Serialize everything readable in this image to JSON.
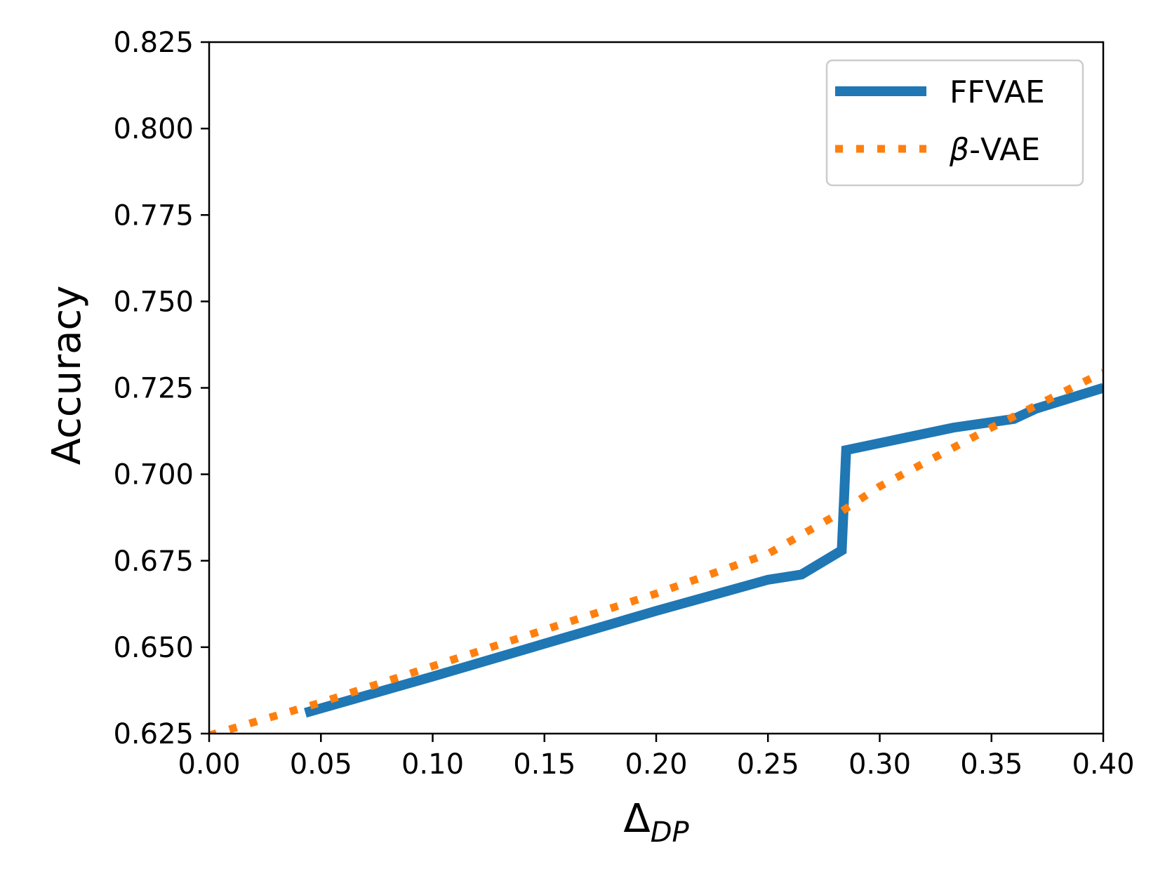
{
  "chart_data": {
    "type": "line",
    "title": "",
    "xlabel": "Δ",
    "xlabel_subscript": "DP",
    "ylabel": "Accuracy",
    "xlim": [
      0.0,
      0.4
    ],
    "ylim": [
      0.625,
      0.825
    ],
    "x_ticks": [
      {
        "value": 0.0,
        "label": "0.00"
      },
      {
        "value": 0.05,
        "label": "0.05"
      },
      {
        "value": 0.1,
        "label": "0.10"
      },
      {
        "value": 0.15,
        "label": "0.15"
      },
      {
        "value": 0.2,
        "label": "0.20"
      },
      {
        "value": 0.25,
        "label": "0.25"
      },
      {
        "value": 0.3,
        "label": "0.30"
      },
      {
        "value": 0.35,
        "label": "0.35"
      },
      {
        "value": 0.4,
        "label": "0.40"
      }
    ],
    "y_ticks": [
      {
        "value": 0.625,
        "label": "0.625"
      },
      {
        "value": 0.65,
        "label": "0.650"
      },
      {
        "value": 0.675,
        "label": "0.675"
      },
      {
        "value": 0.7,
        "label": "0.700"
      },
      {
        "value": 0.725,
        "label": "0.725"
      },
      {
        "value": 0.75,
        "label": "0.750"
      },
      {
        "value": 0.775,
        "label": "0.775"
      },
      {
        "value": 0.8,
        "label": "0.800"
      },
      {
        "value": 0.825,
        "label": "0.825"
      }
    ],
    "grid": false,
    "legend_position": "top-right",
    "series": [
      {
        "name": "FFVAE",
        "name_prefix_italic": "",
        "name_suffix": "FFVAE",
        "style": "solid",
        "color": "#1f77b4",
        "x": [
          0.043,
          0.1,
          0.15,
          0.2,
          0.25,
          0.265,
          0.283,
          0.285,
          0.333,
          0.36,
          0.37,
          0.4
        ],
        "y": [
          0.631,
          0.6415,
          0.651,
          0.6605,
          0.6695,
          0.671,
          0.678,
          0.707,
          0.7135,
          0.716,
          0.719,
          0.725
        ]
      },
      {
        "name": "β-VAE",
        "name_prefix_italic": "β",
        "name_suffix": "-VAE",
        "style": "dotted",
        "color": "#ff7f0e",
        "x": [
          0.0,
          0.05,
          0.1,
          0.15,
          0.2,
          0.25,
          0.28,
          0.3,
          0.35,
          0.4
        ],
        "y": [
          0.6245,
          0.634,
          0.6445,
          0.655,
          0.6655,
          0.677,
          0.688,
          0.6965,
          0.7135,
          0.7295
        ]
      }
    ]
  }
}
